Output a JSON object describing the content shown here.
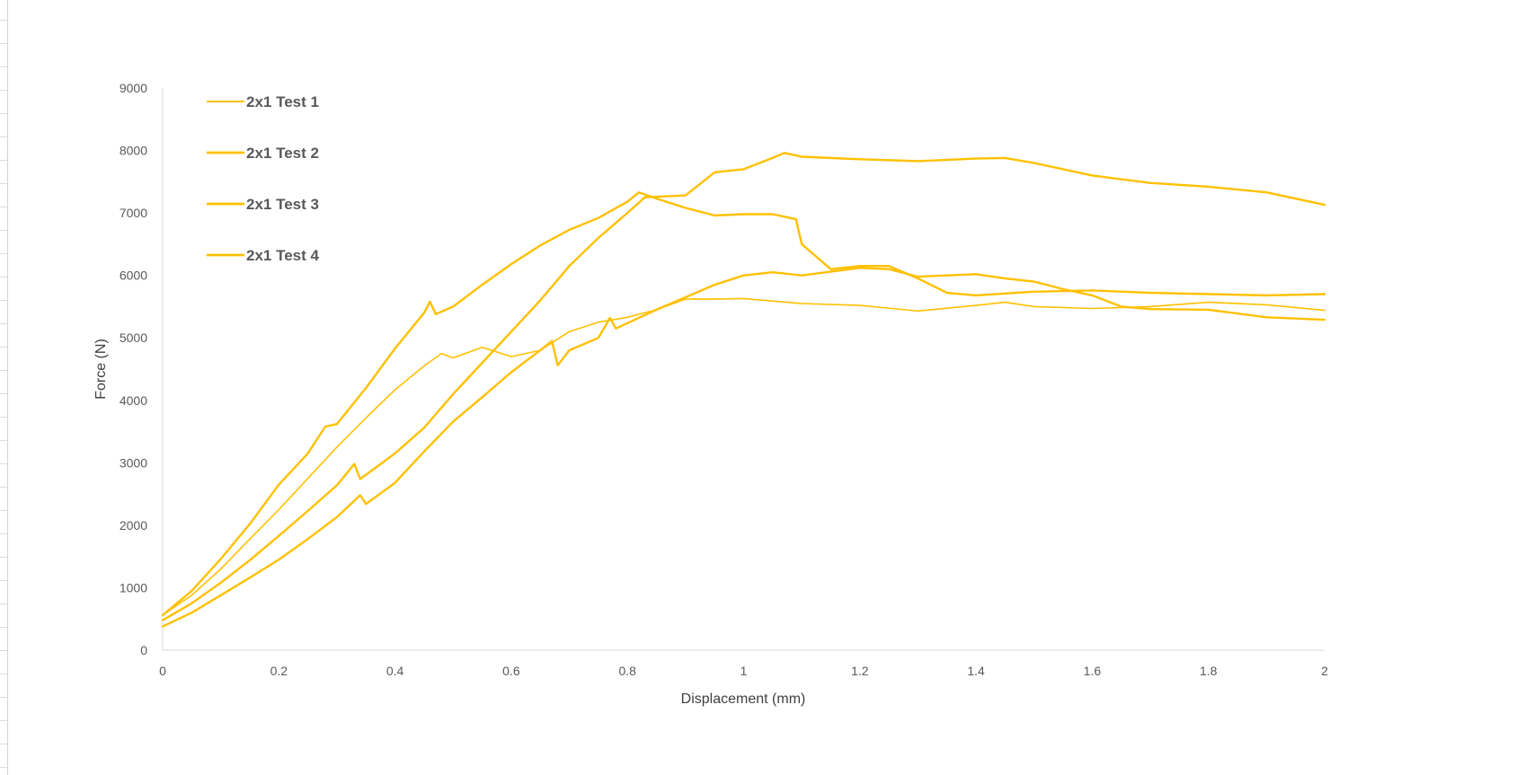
{
  "chart_data": {
    "type": "line",
    "title": "",
    "xlabel": "Displacement (mm)",
    "ylabel": "Force (N)",
    "xlim": [
      0,
      2
    ],
    "ylim": [
      0,
      9000
    ],
    "x_ticks": [
      "0",
      "0.2",
      "0.4",
      "0.6",
      "0.8",
      "1",
      "1.2",
      "1.4",
      "1.6",
      "1.8",
      "2"
    ],
    "y_ticks": [
      "0",
      "1000",
      "2000",
      "3000",
      "4000",
      "5000",
      "6000",
      "7000",
      "8000",
      "9000"
    ],
    "grid": false,
    "legend_position": "top-left",
    "series_color": "#FFC000",
    "series": [
      {
        "name": "2x1 Test 1",
        "line_width": 1.6,
        "points": [
          [
            0,
            560
          ],
          [
            0.05,
            880
          ],
          [
            0.1,
            1300
          ],
          [
            0.15,
            1780
          ],
          [
            0.2,
            2250
          ],
          [
            0.25,
            2750
          ],
          [
            0.3,
            3250
          ],
          [
            0.35,
            3720
          ],
          [
            0.4,
            4170
          ],
          [
            0.45,
            4550
          ],
          [
            0.48,
            4750
          ],
          [
            0.5,
            4680
          ],
          [
            0.55,
            4850
          ],
          [
            0.6,
            4700
          ],
          [
            0.65,
            4800
          ],
          [
            0.7,
            5100
          ],
          [
            0.75,
            5250
          ],
          [
            0.8,
            5330
          ],
          [
            0.85,
            5450
          ],
          [
            0.9,
            5620
          ],
          [
            0.95,
            5620
          ],
          [
            1.0,
            5630
          ],
          [
            1.1,
            5550
          ],
          [
            1.2,
            5520
          ],
          [
            1.3,
            5430
          ],
          [
            1.4,
            5520
          ],
          [
            1.45,
            5570
          ],
          [
            1.5,
            5500
          ],
          [
            1.6,
            5470
          ],
          [
            1.7,
            5500
          ],
          [
            1.8,
            5570
          ],
          [
            1.9,
            5530
          ],
          [
            2.0,
            5440
          ]
        ]
      },
      {
        "name": "2x1 Test 2",
        "line_width": 2.4,
        "points": [
          [
            0,
            480
          ],
          [
            0.05,
            750
          ],
          [
            0.1,
            1080
          ],
          [
            0.15,
            1440
          ],
          [
            0.2,
            1830
          ],
          [
            0.25,
            2230
          ],
          [
            0.3,
            2640
          ],
          [
            0.33,
            2980
          ],
          [
            0.34,
            2740
          ],
          [
            0.4,
            3150
          ],
          [
            0.45,
            3560
          ],
          [
            0.5,
            4100
          ],
          [
            0.55,
            4600
          ],
          [
            0.6,
            5100
          ],
          [
            0.65,
            5600
          ],
          [
            0.7,
            6150
          ],
          [
            0.75,
            6600
          ],
          [
            0.8,
            7000
          ],
          [
            0.83,
            7250
          ],
          [
            0.9,
            7280
          ],
          [
            0.95,
            7650
          ],
          [
            1.0,
            7700
          ],
          [
            1.05,
            7880
          ],
          [
            1.07,
            7960
          ],
          [
            1.1,
            7900
          ],
          [
            1.2,
            7860
          ],
          [
            1.3,
            7830
          ],
          [
            1.4,
            7870
          ],
          [
            1.45,
            7880
          ],
          [
            1.5,
            7800
          ],
          [
            1.6,
            7600
          ],
          [
            1.7,
            7480
          ],
          [
            1.8,
            7420
          ],
          [
            1.9,
            7330
          ],
          [
            2.0,
            7130
          ]
        ]
      },
      {
        "name": "2x1 Test 3",
        "line_width": 2.4,
        "points": [
          [
            0,
            560
          ],
          [
            0.05,
            950
          ],
          [
            0.1,
            1460
          ],
          [
            0.15,
            2020
          ],
          [
            0.2,
            2650
          ],
          [
            0.25,
            3150
          ],
          [
            0.28,
            3580
          ],
          [
            0.3,
            3620
          ],
          [
            0.35,
            4200
          ],
          [
            0.4,
            4830
          ],
          [
            0.45,
            5400
          ],
          [
            0.46,
            5580
          ],
          [
            0.47,
            5380
          ],
          [
            0.5,
            5500
          ],
          [
            0.55,
            5850
          ],
          [
            0.6,
            6180
          ],
          [
            0.65,
            6480
          ],
          [
            0.7,
            6730
          ],
          [
            0.75,
            6920
          ],
          [
            0.8,
            7180
          ],
          [
            0.82,
            7330
          ],
          [
            0.85,
            7230
          ],
          [
            0.9,
            7080
          ],
          [
            0.95,
            6960
          ],
          [
            1.0,
            6980
          ],
          [
            1.05,
            6980
          ],
          [
            1.09,
            6900
          ],
          [
            1.1,
            6500
          ],
          [
            1.15,
            6100
          ],
          [
            1.2,
            6150
          ],
          [
            1.25,
            6150
          ],
          [
            1.3,
            5950
          ],
          [
            1.35,
            5720
          ],
          [
            1.4,
            5680
          ],
          [
            1.5,
            5740
          ],
          [
            1.6,
            5760
          ],
          [
            1.7,
            5720
          ],
          [
            1.8,
            5700
          ],
          [
            1.9,
            5680
          ],
          [
            2.0,
            5700
          ]
        ]
      },
      {
        "name": "2x1 Test 4",
        "line_width": 2.4,
        "points": [
          [
            0,
            380
          ],
          [
            0.05,
            600
          ],
          [
            0.1,
            880
          ],
          [
            0.15,
            1160
          ],
          [
            0.2,
            1450
          ],
          [
            0.25,
            1780
          ],
          [
            0.3,
            2130
          ],
          [
            0.34,
            2480
          ],
          [
            0.35,
            2340
          ],
          [
            0.4,
            2680
          ],
          [
            0.45,
            3180
          ],
          [
            0.5,
            3660
          ],
          [
            0.55,
            4050
          ],
          [
            0.6,
            4450
          ],
          [
            0.65,
            4800
          ],
          [
            0.67,
            4950
          ],
          [
            0.68,
            4560
          ],
          [
            0.7,
            4800
          ],
          [
            0.75,
            5000
          ],
          [
            0.77,
            5320
          ],
          [
            0.78,
            5150
          ],
          [
            0.85,
            5450
          ],
          [
            0.9,
            5650
          ],
          [
            0.95,
            5850
          ],
          [
            1.0,
            6000
          ],
          [
            1.05,
            6050
          ],
          [
            1.1,
            6000
          ],
          [
            1.2,
            6120
          ],
          [
            1.25,
            6100
          ],
          [
            1.3,
            5980
          ],
          [
            1.4,
            6020
          ],
          [
            1.45,
            5950
          ],
          [
            1.5,
            5900
          ],
          [
            1.55,
            5780
          ],
          [
            1.6,
            5680
          ],
          [
            1.65,
            5500
          ],
          [
            1.7,
            5460
          ],
          [
            1.8,
            5450
          ],
          [
            1.9,
            5330
          ],
          [
            2.0,
            5290
          ]
        ]
      }
    ]
  }
}
